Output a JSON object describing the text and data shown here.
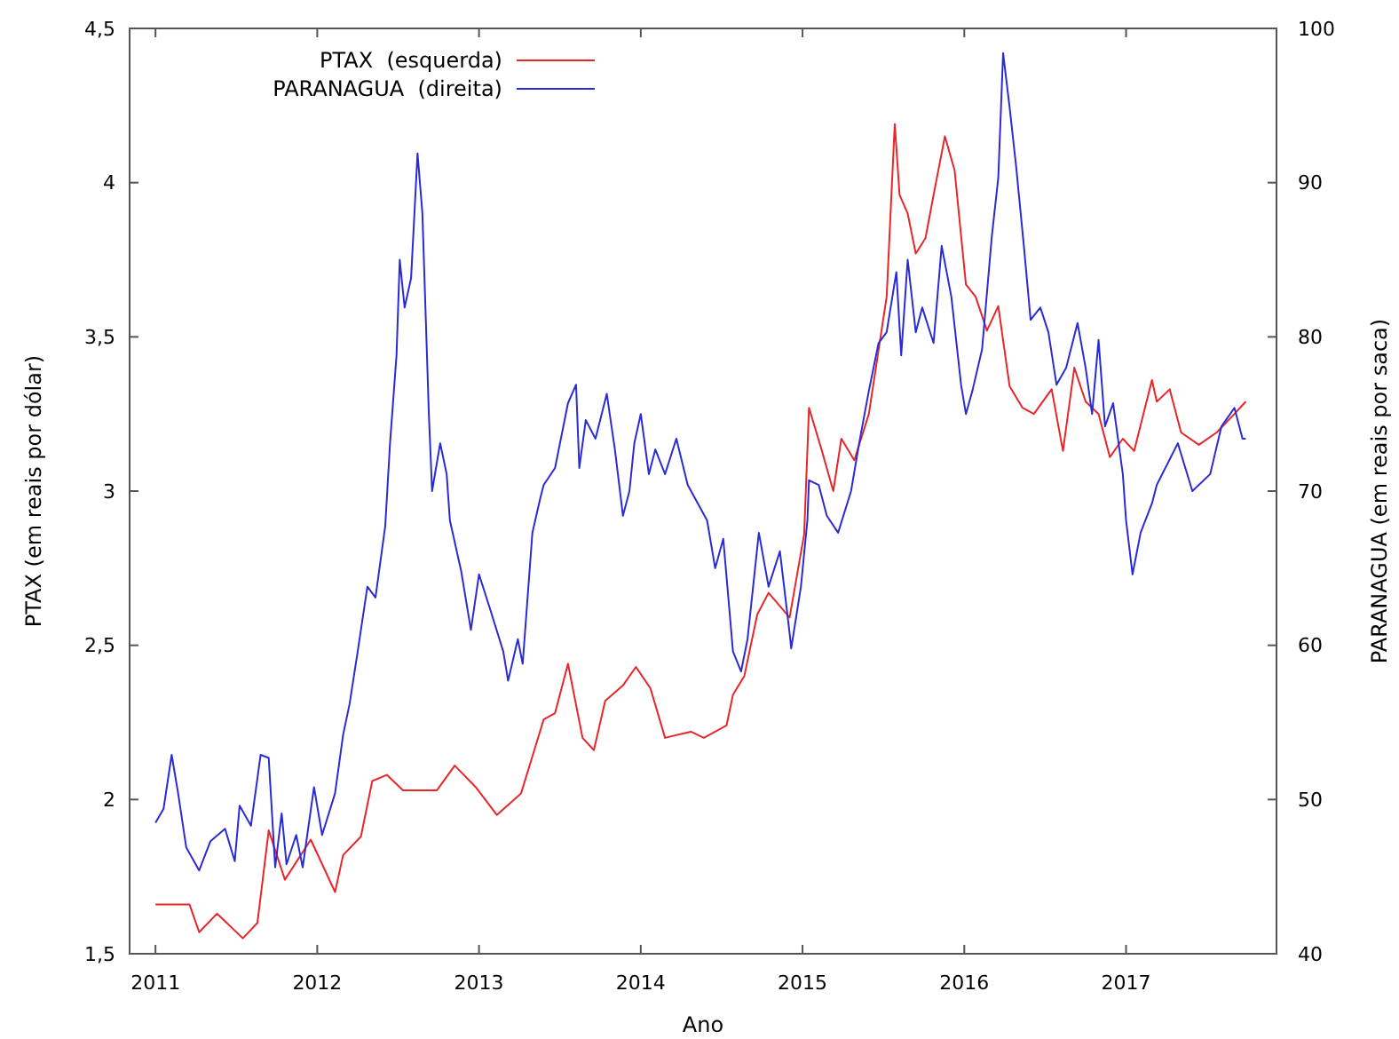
{
  "chart_data": {
    "type": "line",
    "xlabel": "Ano",
    "ylabel": "PTAX (em reais por dólar)",
    "y2label": "PARANAGUA (em reais por saca)",
    "legend": "top left",
    "grid": false,
    "line_style": "solid",
    "xlim": [
      2010.84,
      2017.93
    ],
    "xticks": [
      2011,
      2012,
      2013,
      2014,
      2015,
      2016,
      2017
    ],
    "ylim": [
      1.5,
      4.5
    ],
    "yticks": [
      {
        "value": 1.5,
        "label": "1,5"
      },
      2,
      {
        "value": 2.5,
        "label": "2,5"
      },
      3,
      {
        "value": 3.5,
        "label": "3,5"
      },
      4,
      {
        "value": 4.5,
        "label": "4,5"
      }
    ],
    "y2lim": [
      40,
      100
    ],
    "y2ticks": [
      40,
      50,
      60,
      70,
      80,
      90,
      100
    ],
    "series": [
      {
        "name": "PTAX  (esquerda)",
        "color": "#e8262a",
        "x": [
          2011.0,
          2011.21,
          2011.27,
          2011.38,
          2011.54,
          2011.63,
          2011.7,
          2011.8,
          2011.96,
          2012.11,
          2012.16,
          2012.27,
          2012.34,
          2012.43,
          2012.53,
          2012.74,
          2012.85,
          2012.98,
          2013.11,
          2013.26,
          2013.33,
          2013.4,
          2013.47,
          2013.55,
          2013.64,
          2013.71,
          2013.78,
          2013.89,
          2013.97,
          2014.06,
          2014.15,
          2014.31,
          2014.39,
          2014.53,
          2014.57,
          2014.64,
          2014.72,
          2014.79,
          2014.92,
          2015.01,
          2015.04,
          2015.12,
          2015.19,
          2015.24,
          2015.32,
          2015.41,
          2015.52,
          2015.57,
          2015.6,
          2015.65,
          2015.7,
          2015.76,
          2015.81,
          2015.88,
          2015.94,
          2016.01,
          2016.07,
          2016.14,
          2016.21,
          2016.28,
          2016.36,
          2016.43,
          2016.54,
          2016.61,
          2016.68,
          2016.75,
          2016.83,
          2016.9,
          2016.98,
          2017.05,
          2017.16,
          2017.19,
          2017.27,
          2017.34,
          2017.45,
          2017.56,
          2017.67,
          2017.74
        ],
        "values": [
          1.66,
          1.66,
          1.57,
          1.63,
          1.55,
          1.6,
          1.9,
          1.74,
          1.87,
          1.7,
          1.82,
          1.88,
          2.06,
          2.08,
          2.03,
          2.03,
          2.11,
          2.04,
          1.95,
          2.02,
          2.14,
          2.26,
          2.28,
          2.44,
          2.2,
          2.16,
          2.32,
          2.37,
          2.43,
          2.36,
          2.2,
          2.22,
          2.2,
          2.24,
          2.34,
          2.4,
          2.6,
          2.67,
          2.59,
          2.86,
          3.27,
          3.13,
          3.0,
          3.17,
          3.1,
          3.25,
          3.63,
          4.19,
          3.96,
          3.9,
          3.77,
          3.82,
          3.96,
          4.15,
          4.04,
          3.67,
          3.63,
          3.52,
          3.6,
          3.34,
          3.27,
          3.25,
          3.33,
          3.13,
          3.4,
          3.29,
          3.25,
          3.11,
          3.17,
          3.13,
          3.36,
          3.29,
          3.33,
          3.19,
          3.15,
          3.19,
          3.25,
          3.29
        ]
      },
      {
        "name": "PARANAGUA  (direita)",
        "color": "#2b2bd6",
        "axis": "y2",
        "x": [
          2011.0,
          2011.05,
          2011.1,
          2011.14,
          2011.19,
          2011.27,
          2011.34,
          2011.43,
          2011.49,
          2011.52,
          2011.59,
          2011.65,
          2011.7,
          2011.74,
          2011.78,
          2011.81,
          2011.87,
          2011.91,
          2011.98,
          2012.03,
          2012.11,
          2012.16,
          2012.2,
          2012.25,
          2012.31,
          2012.36,
          2012.42,
          2012.45,
          2012.49,
          2012.51,
          2012.54,
          2012.58,
          2012.62,
          2012.65,
          2012.69,
          2012.71,
          2012.76,
          2012.8,
          2012.82,
          2012.89,
          2012.95,
          2013.0,
          2013.07,
          2013.15,
          2013.18,
          2013.24,
          2013.27,
          2013.33,
          2013.38,
          2013.4,
          2013.47,
          2013.55,
          2013.6,
          2013.62,
          2013.66,
          2013.72,
          2013.79,
          2013.84,
          2013.89,
          2013.93,
          2013.96,
          2014.0,
          2014.05,
          2014.09,
          2014.15,
          2014.22,
          2014.29,
          2014.41,
          2014.46,
          2014.51,
          2014.57,
          2014.62,
          2014.66,
          2014.73,
          2014.79,
          2014.86,
          2014.92,
          2014.93,
          2014.99,
          2015.03,
          2015.04,
          2015.1,
          2015.15,
          2015.22,
          2015.3,
          2015.35,
          2015.41,
          2015.47,
          2015.52,
          2015.58,
          2015.61,
          2015.65,
          2015.7,
          2015.74,
          2015.81,
          2015.86,
          2015.92,
          2015.98,
          2016.01,
          2016.05,
          2016.11,
          2016.17,
          2016.21,
          2016.24,
          2016.28,
          2016.32,
          2016.37,
          2016.41,
          2016.47,
          2016.52,
          2016.57,
          2016.63,
          2016.7,
          2016.75,
          2016.79,
          2016.83,
          2016.87,
          2016.92,
          2016.98,
          2017.0,
          2017.04,
          2017.09,
          2017.16,
          2017.19,
          2017.32,
          2017.41,
          2017.52,
          2017.59,
          2017.67,
          2017.72,
          2017.74
        ],
        "values": [
          48.5,
          49.4,
          52.9,
          50.4,
          46.9,
          45.4,
          47.3,
          48.1,
          46.0,
          49.6,
          48.3,
          52.9,
          52.7,
          45.6,
          49.1,
          45.8,
          47.7,
          45.6,
          50.8,
          47.7,
          50.4,
          54.2,
          56.2,
          59.6,
          63.8,
          63.1,
          67.7,
          73.1,
          78.8,
          85.0,
          81.9,
          83.8,
          91.9,
          88.0,
          75.0,
          70.0,
          73.1,
          71.1,
          68.1,
          64.8,
          61.0,
          64.6,
          62.3,
          59.6,
          57.7,
          60.4,
          58.8,
          67.3,
          69.6,
          70.4,
          71.5,
          75.7,
          76.9,
          71.5,
          74.6,
          73.4,
          76.3,
          72.7,
          68.4,
          70.0,
          73.1,
          75.0,
          71.1,
          72.7,
          71.1,
          73.4,
          70.4,
          68.1,
          65.0,
          66.9,
          59.6,
          58.3,
          60.4,
          67.3,
          63.8,
          66.1,
          60.8,
          59.8,
          63.8,
          68.1,
          70.7,
          70.4,
          68.4,
          67.3,
          70.0,
          73.1,
          76.5,
          79.6,
          80.3,
          84.2,
          78.8,
          85.0,
          80.3,
          81.9,
          79.6,
          85.9,
          82.6,
          76.9,
          75.0,
          76.5,
          79.2,
          86.5,
          90.3,
          98.4,
          94.9,
          91.1,
          85.7,
          81.1,
          81.9,
          80.3,
          76.9,
          78.0,
          80.9,
          78.0,
          75.0,
          79.8,
          74.2,
          75.7,
          71.1,
          68.1,
          64.6,
          67.3,
          69.2,
          70.4,
          73.1,
          70.0,
          71.1,
          74.2,
          75.4,
          73.4,
          73.4
        ]
      }
    ]
  }
}
